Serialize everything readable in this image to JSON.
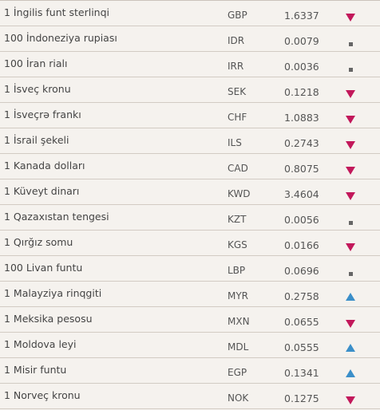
{
  "colors": {
    "down": "#c2185b",
    "up": "#3b8fc9",
    "unchanged": "#666666"
  },
  "rates": [
    {
      "name": "1 İngilis funt sterlinqi",
      "code": "GBP",
      "rate": "1.6337",
      "trend": "down"
    },
    {
      "name": "100 İndoneziya rupiası",
      "code": "IDR",
      "rate": "0.0079",
      "trend": "unchanged"
    },
    {
      "name": "100 İran rialı",
      "code": "IRR",
      "rate": "0.0036",
      "trend": "unchanged"
    },
    {
      "name": "1 İsveç kronu",
      "code": "SEK",
      "rate": "0.1218",
      "trend": "down"
    },
    {
      "name": "1 İsveçrə frankı",
      "code": "CHF",
      "rate": "1.0883",
      "trend": "down"
    },
    {
      "name": "1 İsrail şekeli",
      "code": "ILS",
      "rate": "0.2743",
      "trend": "down"
    },
    {
      "name": "1 Kanada dolları",
      "code": "CAD",
      "rate": "0.8075",
      "trend": "down"
    },
    {
      "name": "1 Küveyt dinarı",
      "code": "KWD",
      "rate": "3.4604",
      "trend": "down"
    },
    {
      "name": "1 Qazaxıstan tengesi",
      "code": "KZT",
      "rate": "0.0056",
      "trend": "unchanged"
    },
    {
      "name": "1 Qırğız somu",
      "code": "KGS",
      "rate": "0.0166",
      "trend": "down"
    },
    {
      "name": "100 Livan funtu",
      "code": "LBP",
      "rate": "0.0696",
      "trend": "unchanged"
    },
    {
      "name": "1 Malayziya rinqgiti",
      "code": "MYR",
      "rate": "0.2758",
      "trend": "up"
    },
    {
      "name": "1 Meksika pesosu",
      "code": "MXN",
      "rate": "0.0655",
      "trend": "down"
    },
    {
      "name": "1 Moldova leyi",
      "code": "MDL",
      "rate": "0.0555",
      "trend": "up"
    },
    {
      "name": "1 Misir funtu",
      "code": "EGP",
      "rate": "0.1341",
      "trend": "up"
    },
    {
      "name": "1 Norveç kronu",
      "code": "NOK",
      "rate": "0.1275",
      "trend": "down"
    }
  ]
}
